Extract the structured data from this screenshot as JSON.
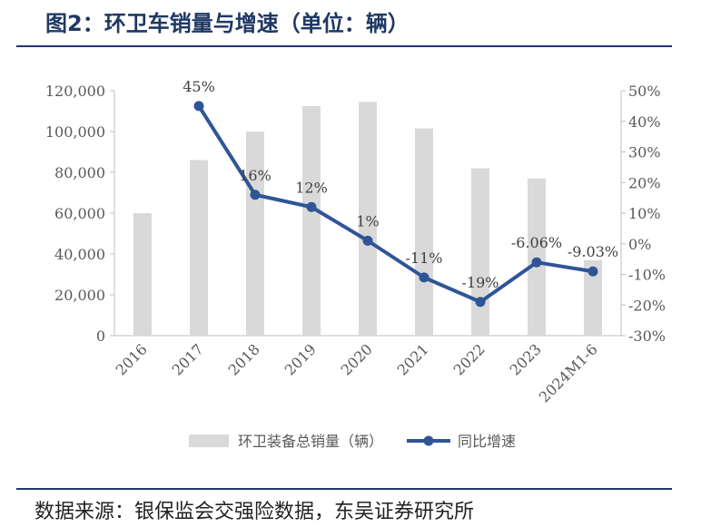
{
  "title": "图2：环卫车销量与增速（单位：辆）",
  "source": "数据来源：银保监会交强险数据，东吴证券研究所",
  "chart_data": {
    "type": "bar",
    "categories": [
      "2016",
      "2017",
      "2018",
      "2019",
      "2020",
      "2021",
      "2022",
      "2023",
      "2024M1-6"
    ],
    "series": [
      {
        "name": "环卫装备总销量（辆）",
        "type": "bar",
        "axis": "left",
        "color": "#d9d9d9",
        "values": [
          60000,
          86000,
          100000,
          112500,
          114500,
          101500,
          82000,
          77000,
          37000
        ]
      },
      {
        "name": "同比增速",
        "type": "line",
        "axis": "right",
        "color": "#2f5597",
        "values": [
          null,
          45,
          16,
          12,
          1,
          -11,
          -19,
          -6.06,
          -9.03
        ],
        "labels": [
          "",
          "45%",
          "16%",
          "12%",
          "1%",
          "-11%",
          "-19%",
          "-6.06%",
          "-9.03%"
        ]
      }
    ],
    "left_axis": {
      "ylim": [
        0,
        120000
      ],
      "ticks": [
        "0",
        "20,000",
        "40,000",
        "60,000",
        "80,000",
        "100,000",
        "120,000"
      ]
    },
    "right_axis": {
      "ylim": [
        -30,
        50
      ],
      "ticks": [
        "-30%",
        "-20%",
        "-10%",
        "0%",
        "10%",
        "20%",
        "30%",
        "40%",
        "50%"
      ]
    },
    "grid": false,
    "legend_position": "bottom"
  }
}
